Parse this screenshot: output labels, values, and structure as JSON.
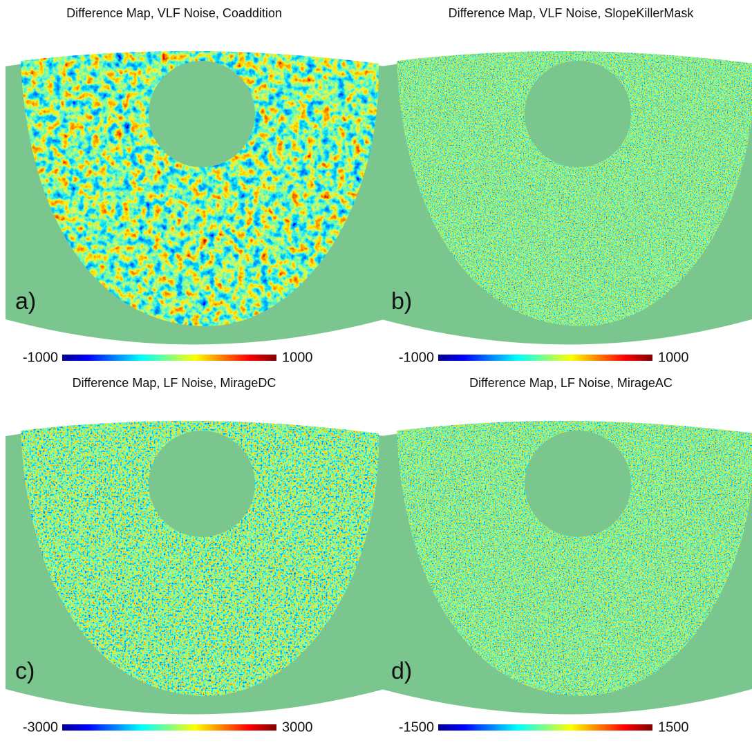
{
  "panels": [
    {
      "title": "Difference Map, VLF Noise, Coaddition",
      "label": "a)",
      "cmin": -1000,
      "cmax": 1000
    },
    {
      "title": "Difference Map, VLF Noise, SlopeKillerMask",
      "label": "b)",
      "cmin": -1000,
      "cmax": 1000
    },
    {
      "title": "Difference Map, LF Noise, MirageDC",
      "label": "c)",
      "cmin": -3000,
      "cmax": 3000
    },
    {
      "title": "Difference Map, LF Noise, MirageAC",
      "label": "d)",
      "cmin": -1500,
      "cmax": 1500
    }
  ]
}
